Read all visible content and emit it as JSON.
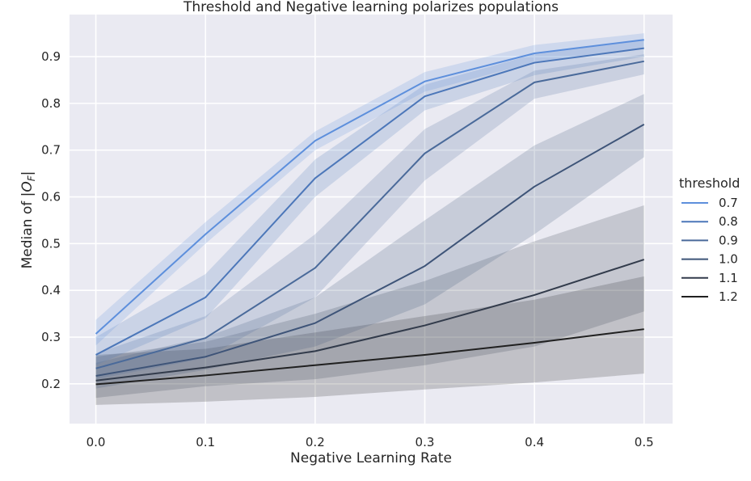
{
  "chart_data": {
    "type": "line",
    "title": "Threshold and Negative learning polarizes populations",
    "xlabel": "Negative Learning Rate",
    "ylabel": "Median of |O_F|",
    "ylabel_display": "Median of |",
    "ylabel_symbol": "O",
    "ylabel_subscript": "F",
    "ylabel_close": "|",
    "x": [
      0.0,
      0.1,
      0.2,
      0.3,
      0.4,
      0.5
    ],
    "x_tick_labels": [
      "0.0",
      "0.1",
      "0.2",
      "0.3",
      "0.4",
      "0.5"
    ],
    "y_ticks": [
      0.2,
      0.3,
      0.4,
      0.5,
      0.6,
      0.7,
      0.8,
      0.9
    ],
    "y_tick_labels": [
      "0.2",
      "0.3",
      "0.4",
      "0.5",
      "0.6",
      "0.7",
      "0.8",
      "0.9"
    ],
    "xlim": [
      -0.024,
      0.526
    ],
    "ylim": [
      0.115,
      0.99
    ],
    "background_color": "#eaeaf2",
    "grid_color": "#ffffff",
    "grid": true,
    "legend": {
      "title": "threshold",
      "position": "right"
    },
    "series": [
      {
        "name": "0.7",
        "color": "#5d8fdc",
        "values": [
          0.307,
          0.52,
          0.72,
          0.847,
          0.907,
          0.936
        ],
        "lower": [
          0.282,
          0.5,
          0.7,
          0.825,
          0.888,
          0.92
        ],
        "upper": [
          0.337,
          0.546,
          0.74,
          0.867,
          0.925,
          0.95
        ]
      },
      {
        "name": "0.8",
        "color": "#4c77b9",
        "values": [
          0.262,
          0.385,
          0.64,
          0.815,
          0.887,
          0.918
        ],
        "lower": [
          0.24,
          0.34,
          0.6,
          0.785,
          0.86,
          0.9
        ],
        "upper": [
          0.3,
          0.435,
          0.68,
          0.84,
          0.905,
          0.935
        ]
      },
      {
        "name": "0.9",
        "color": "#4a6a9a",
        "values": [
          0.233,
          0.298,
          0.448,
          0.693,
          0.845,
          0.89
        ],
        "lower": [
          0.21,
          0.255,
          0.385,
          0.635,
          0.81,
          0.862
        ],
        "upper": [
          0.265,
          0.345,
          0.52,
          0.745,
          0.87,
          0.905
        ]
      },
      {
        "name": "1.0",
        "color": "#3e5478",
        "values": [
          0.217,
          0.258,
          0.33,
          0.452,
          0.622,
          0.755
        ],
        "lower": [
          0.19,
          0.23,
          0.28,
          0.37,
          0.52,
          0.685
        ],
        "upper": [
          0.245,
          0.3,
          0.385,
          0.55,
          0.71,
          0.82
        ]
      },
      {
        "name": "1.1",
        "color": "#323b4b",
        "values": [
          0.207,
          0.235,
          0.27,
          0.325,
          0.39,
          0.466
        ],
        "lower": [
          0.17,
          0.195,
          0.21,
          0.24,
          0.28,
          0.355
        ],
        "upper": [
          0.258,
          0.29,
          0.35,
          0.42,
          0.505,
          0.582
        ]
      },
      {
        "name": "1.2",
        "color": "#202020",
        "values": [
          0.199,
          0.218,
          0.24,
          0.262,
          0.288,
          0.317
        ],
        "lower": [
          0.155,
          0.162,
          0.172,
          0.188,
          0.203,
          0.222
        ],
        "upper": [
          0.262,
          0.275,
          0.31,
          0.345,
          0.38,
          0.43
        ]
      }
    ]
  }
}
